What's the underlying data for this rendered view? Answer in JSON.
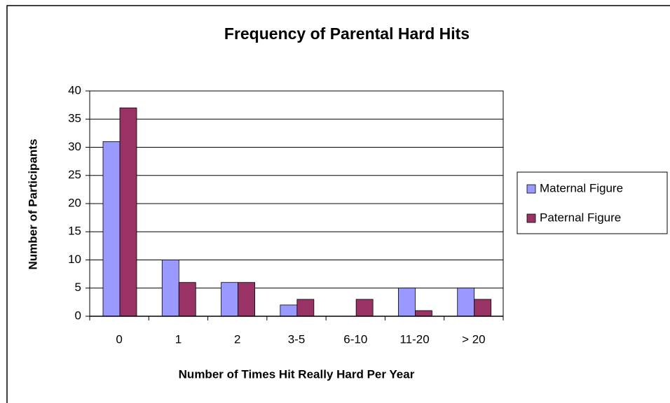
{
  "chart_data": {
    "type": "bar",
    "title": "Frequency of Parental Hard Hits",
    "x_label": "Number of Times Hit Really Hard Per Year",
    "y_label": "Number of Participants",
    "categories": [
      "0",
      "1",
      "2",
      "3-5",
      "6-10",
      "11-20",
      "> 20"
    ],
    "series": [
      {
        "name": "Maternal Figure",
        "color": "#9999ff",
        "values": [
          31,
          10,
          6,
          2,
          0,
          5,
          5
        ]
      },
      {
        "name": "Paternal Figure",
        "color": "#993366",
        "values": [
          37,
          6,
          6,
          3,
          3,
          1,
          3
        ]
      }
    ],
    "ylim": [
      0,
      40
    ],
    "yticks": [
      0,
      5,
      10,
      15,
      20,
      25,
      30,
      35,
      40
    ],
    "grid": true,
    "legend": "right"
  }
}
